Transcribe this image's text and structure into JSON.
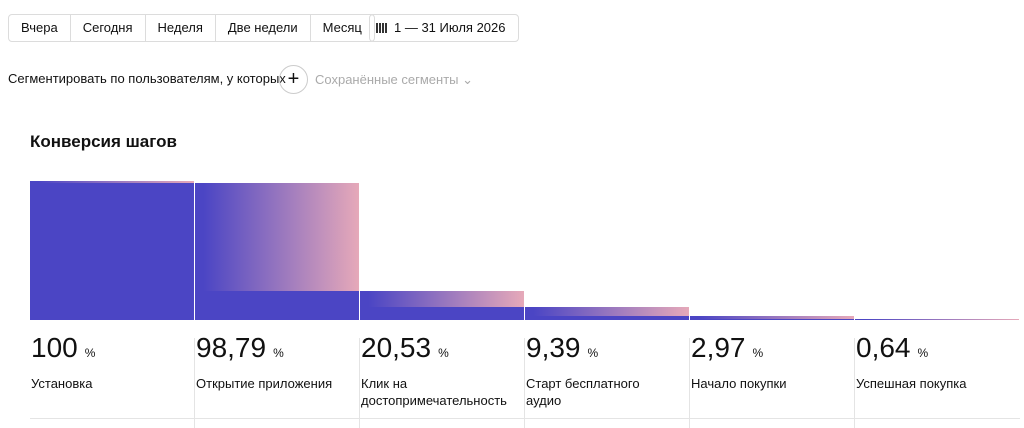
{
  "toolbar": {
    "periods": [
      "Вчера",
      "Сегодня",
      "Неделя",
      "Две недели",
      "Месяц"
    ],
    "date_range": "1 — 31 Июля 2026"
  },
  "segment": {
    "label": "Сегментировать по пользователям, у которых",
    "saved": "Сохранённые сегменты"
  },
  "chart_data": {
    "type": "funnel",
    "title": "Конверсия шагов",
    "categories": [
      "Установка",
      "Открытие приложения",
      "Клик на достопримечательность",
      "Старт бесплатного аудио",
      "Начало покупки",
      "Успешная покупка"
    ],
    "values": [
      100,
      98.79,
      20.53,
      9.39,
      2.97,
      0.64
    ],
    "value_labels": [
      "100",
      "98,79",
      "20,53",
      "9,39",
      "2,97",
      "0,64"
    ],
    "unit": "%",
    "ylim": [
      0,
      100
    ],
    "color": "#4b45c4",
    "gradient_color": "#e6a9b9"
  }
}
